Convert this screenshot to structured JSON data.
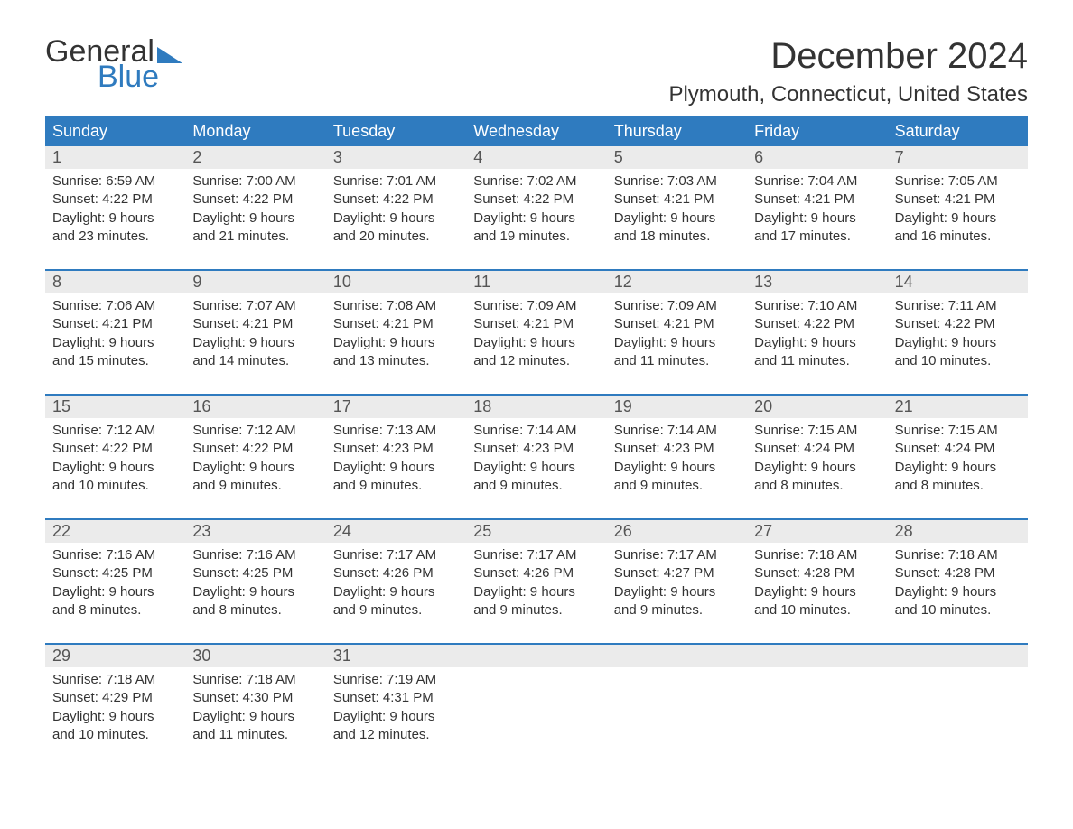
{
  "logo": {
    "text1": "General",
    "text2": "Blue"
  },
  "title": "December 2024",
  "location": "Plymouth, Connecticut, United States",
  "colors": {
    "accent": "#2f7bbf",
    "header_bg": "#2f7bbf",
    "header_text": "#ffffff",
    "daynum_bg": "#ebebeb",
    "daynum_text": "#555555",
    "body_text": "#333333",
    "background": "#ffffff"
  },
  "typography": {
    "title_fontsize": 40,
    "location_fontsize": 24,
    "header_fontsize": 18,
    "daynum_fontsize": 18,
    "detail_fontsize": 15
  },
  "layout": {
    "columns": 7,
    "detail_lines_per_cell": 4
  },
  "day_names": [
    "Sunday",
    "Monday",
    "Tuesday",
    "Wednesday",
    "Thursday",
    "Friday",
    "Saturday"
  ],
  "weeks": [
    [
      {
        "n": "1",
        "sunrise": "6:59 AM",
        "sunset": "4:22 PM",
        "dl1": "Daylight: 9 hours",
        "dl2": "and 23 minutes."
      },
      {
        "n": "2",
        "sunrise": "7:00 AM",
        "sunset": "4:22 PM",
        "dl1": "Daylight: 9 hours",
        "dl2": "and 21 minutes."
      },
      {
        "n": "3",
        "sunrise": "7:01 AM",
        "sunset": "4:22 PM",
        "dl1": "Daylight: 9 hours",
        "dl2": "and 20 minutes."
      },
      {
        "n": "4",
        "sunrise": "7:02 AM",
        "sunset": "4:22 PM",
        "dl1": "Daylight: 9 hours",
        "dl2": "and 19 minutes."
      },
      {
        "n": "5",
        "sunrise": "7:03 AM",
        "sunset": "4:21 PM",
        "dl1": "Daylight: 9 hours",
        "dl2": "and 18 minutes."
      },
      {
        "n": "6",
        "sunrise": "7:04 AM",
        "sunset": "4:21 PM",
        "dl1": "Daylight: 9 hours",
        "dl2": "and 17 minutes."
      },
      {
        "n": "7",
        "sunrise": "7:05 AM",
        "sunset": "4:21 PM",
        "dl1": "Daylight: 9 hours",
        "dl2": "and 16 minutes."
      }
    ],
    [
      {
        "n": "8",
        "sunrise": "7:06 AM",
        "sunset": "4:21 PM",
        "dl1": "Daylight: 9 hours",
        "dl2": "and 15 minutes."
      },
      {
        "n": "9",
        "sunrise": "7:07 AM",
        "sunset": "4:21 PM",
        "dl1": "Daylight: 9 hours",
        "dl2": "and 14 minutes."
      },
      {
        "n": "10",
        "sunrise": "7:08 AM",
        "sunset": "4:21 PM",
        "dl1": "Daylight: 9 hours",
        "dl2": "and 13 minutes."
      },
      {
        "n": "11",
        "sunrise": "7:09 AM",
        "sunset": "4:21 PM",
        "dl1": "Daylight: 9 hours",
        "dl2": "and 12 minutes."
      },
      {
        "n": "12",
        "sunrise": "7:09 AM",
        "sunset": "4:21 PM",
        "dl1": "Daylight: 9 hours",
        "dl2": "and 11 minutes."
      },
      {
        "n": "13",
        "sunrise": "7:10 AM",
        "sunset": "4:22 PM",
        "dl1": "Daylight: 9 hours",
        "dl2": "and 11 minutes."
      },
      {
        "n": "14",
        "sunrise": "7:11 AM",
        "sunset": "4:22 PM",
        "dl1": "Daylight: 9 hours",
        "dl2": "and 10 minutes."
      }
    ],
    [
      {
        "n": "15",
        "sunrise": "7:12 AM",
        "sunset": "4:22 PM",
        "dl1": "Daylight: 9 hours",
        "dl2": "and 10 minutes."
      },
      {
        "n": "16",
        "sunrise": "7:12 AM",
        "sunset": "4:22 PM",
        "dl1": "Daylight: 9 hours",
        "dl2": "and 9 minutes."
      },
      {
        "n": "17",
        "sunrise": "7:13 AM",
        "sunset": "4:23 PM",
        "dl1": "Daylight: 9 hours",
        "dl2": "and 9 minutes."
      },
      {
        "n": "18",
        "sunrise": "7:14 AM",
        "sunset": "4:23 PM",
        "dl1": "Daylight: 9 hours",
        "dl2": "and 9 minutes."
      },
      {
        "n": "19",
        "sunrise": "7:14 AM",
        "sunset": "4:23 PM",
        "dl1": "Daylight: 9 hours",
        "dl2": "and 9 minutes."
      },
      {
        "n": "20",
        "sunrise": "7:15 AM",
        "sunset": "4:24 PM",
        "dl1": "Daylight: 9 hours",
        "dl2": "and 8 minutes."
      },
      {
        "n": "21",
        "sunrise": "7:15 AM",
        "sunset": "4:24 PM",
        "dl1": "Daylight: 9 hours",
        "dl2": "and 8 minutes."
      }
    ],
    [
      {
        "n": "22",
        "sunrise": "7:16 AM",
        "sunset": "4:25 PM",
        "dl1": "Daylight: 9 hours",
        "dl2": "and 8 minutes."
      },
      {
        "n": "23",
        "sunrise": "7:16 AM",
        "sunset": "4:25 PM",
        "dl1": "Daylight: 9 hours",
        "dl2": "and 8 minutes."
      },
      {
        "n": "24",
        "sunrise": "7:17 AM",
        "sunset": "4:26 PM",
        "dl1": "Daylight: 9 hours",
        "dl2": "and 9 minutes."
      },
      {
        "n": "25",
        "sunrise": "7:17 AM",
        "sunset": "4:26 PM",
        "dl1": "Daylight: 9 hours",
        "dl2": "and 9 minutes."
      },
      {
        "n": "26",
        "sunrise": "7:17 AM",
        "sunset": "4:27 PM",
        "dl1": "Daylight: 9 hours",
        "dl2": "and 9 minutes."
      },
      {
        "n": "27",
        "sunrise": "7:18 AM",
        "sunset": "4:28 PM",
        "dl1": "Daylight: 9 hours",
        "dl2": "and 10 minutes."
      },
      {
        "n": "28",
        "sunrise": "7:18 AM",
        "sunset": "4:28 PM",
        "dl1": "Daylight: 9 hours",
        "dl2": "and 10 minutes."
      }
    ],
    [
      {
        "n": "29",
        "sunrise": "7:18 AM",
        "sunset": "4:29 PM",
        "dl1": "Daylight: 9 hours",
        "dl2": "and 10 minutes."
      },
      {
        "n": "30",
        "sunrise": "7:18 AM",
        "sunset": "4:30 PM",
        "dl1": "Daylight: 9 hours",
        "dl2": "and 11 minutes."
      },
      {
        "n": "31",
        "sunrise": "7:19 AM",
        "sunset": "4:31 PM",
        "dl1": "Daylight: 9 hours",
        "dl2": "and 12 minutes."
      },
      null,
      null,
      null,
      null
    ]
  ],
  "labels": {
    "sunrise_prefix": "Sunrise: ",
    "sunset_prefix": "Sunset: "
  }
}
